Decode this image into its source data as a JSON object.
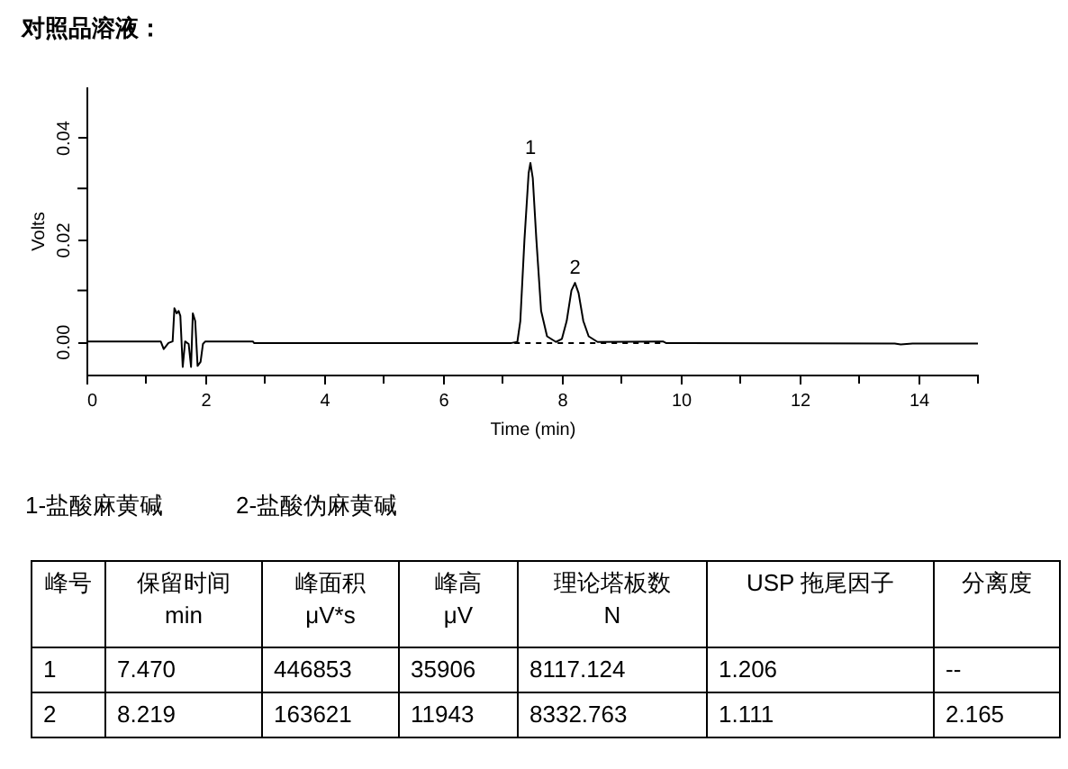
{
  "chart_data": {
    "type": "line",
    "title": "对照品溶液：",
    "xlabel": "Time (min)",
    "ylabel": "Volts",
    "xlim": [
      0,
      15
    ],
    "xticks": [
      0,
      {
        "value": 1,
        "label": null
      },
      2,
      {
        "value": 3,
        "label": null
      },
      4,
      {
        "value": 5,
        "label": null
      },
      6,
      {
        "value": 7,
        "label": null
      },
      8,
      {
        "value": 9,
        "label": null
      },
      10,
      {
        "value": 11,
        "label": null
      },
      12,
      {
        "value": 13,
        "label": null
      },
      14,
      {
        "value": 15,
        "label": null
      }
    ],
    "ylim": [
      -0.0065,
      0.05
    ],
    "yticks": [
      {
        "value": 0,
        "label": "0.00"
      },
      {
        "value": 0.01,
        "label": null
      },
      0.02,
      {
        "value": 0.03,
        "label": null
      },
      0.04
    ],
    "grid": false,
    "series": [
      {
        "color": "#000000",
        "line_style": "solid",
        "x": [
          0,
          1.25,
          1.3,
          1.38,
          1.45,
          1.48,
          1.52,
          1.55,
          1.58,
          1.62,
          1.66,
          1.72,
          1.76,
          1.79,
          1.83,
          1.87,
          1.92,
          1.96,
          2.0,
          2.8,
          2.82,
          7.15,
          7.25,
          7.3,
          7.37,
          7.44,
          7.47,
          7.51,
          7.57,
          7.65,
          7.75,
          7.9,
          8.0,
          8.08,
          8.16,
          8.22,
          8.28,
          8.36,
          8.45,
          8.6,
          9.7,
          9.75,
          13.6,
          13.7,
          13.9,
          15
        ],
        "values": [
          0,
          0,
          -0.0015,
          -0.0003,
          0,
          0.0065,
          0.0055,
          0.006,
          0.005,
          -0.005,
          0,
          -0.0005,
          -0.005,
          0.0055,
          0.004,
          -0.0048,
          -0.004,
          -0.0005,
          0,
          0,
          -0.0003,
          -0.0003,
          -0.0001,
          0.004,
          0.02,
          0.033,
          0.035,
          0.032,
          0.02,
          0.006,
          0.001,
          -0.0001,
          0.0005,
          0.004,
          0.01,
          0.0115,
          0.0095,
          0.004,
          0.001,
          -0.0001,
          0,
          -0.0003,
          -0.0004,
          -0.0006,
          -0.0004,
          -0.0004
        ]
      },
      {
        "color": "#000000",
        "line_style": "dashed",
        "x": [
          7.2,
          9.7
        ],
        "values": [
          -0.0003,
          -0.0003
        ]
      }
    ],
    "annotations": [
      {
        "text": "1",
        "x": 7.47,
        "y": 0.035
      },
      {
        "text": "2",
        "x": 8.22,
        "y": 0.0115
      },
      "1-盐酸麻黄碱",
      "2-盐酸伪麻黄碱",
      "峰号",
      "保留时间\nmin",
      "峰面积\nμV*s",
      "峰高\nμV",
      "理论塔板数\nN",
      "USP 拖尾因子",
      "分离度",
      "1",
      "7.470",
      "446853",
      "35906",
      "8117.124",
      "1.206",
      "--",
      "2",
      "8.219",
      "163621",
      "11943",
      "8332.763",
      "1.111",
      "2.165"
    ]
  }
}
